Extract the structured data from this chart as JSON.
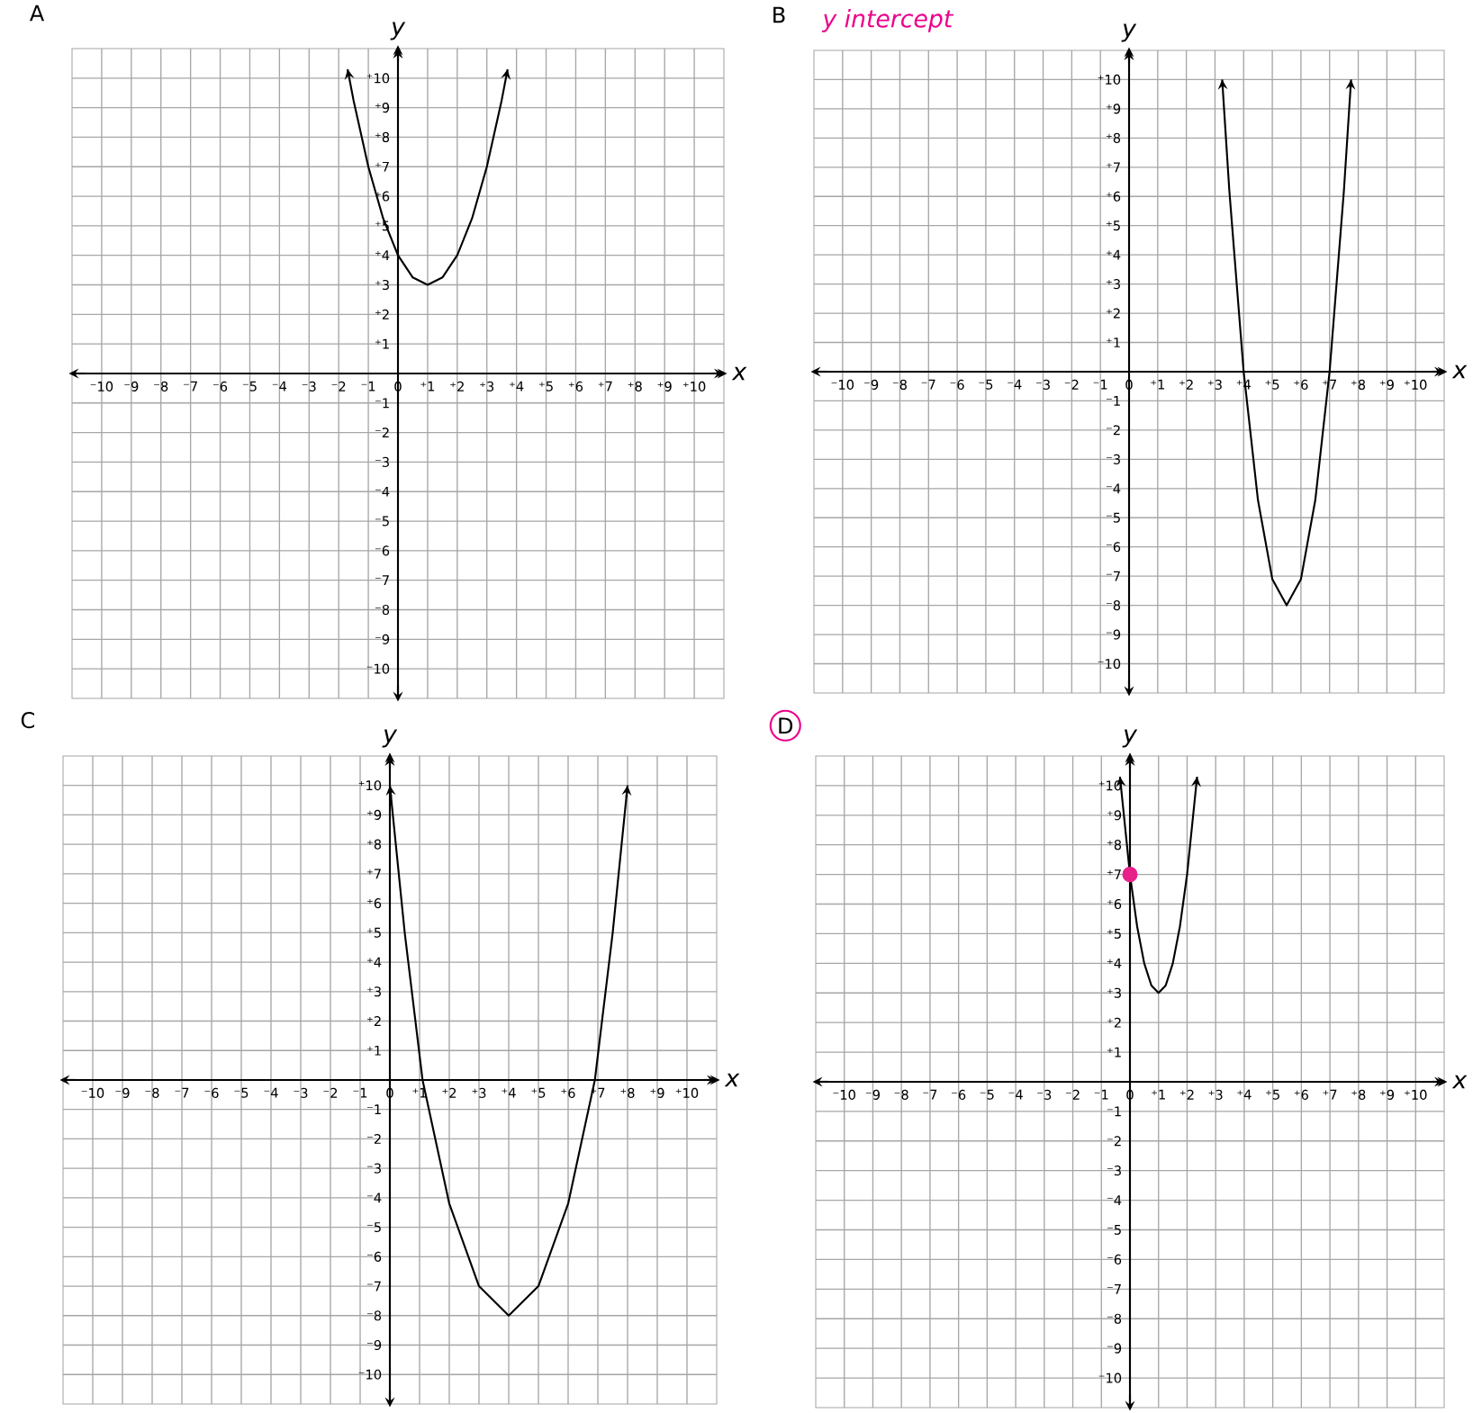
{
  "chart_data": [
    {
      "type": "line",
      "title": "A",
      "xlabel": "x",
      "ylabel": "y",
      "grid": true,
      "xlim": [
        -11,
        11
      ],
      "ylim": [
        -11,
        11
      ],
      "xticks": [
        {
          "value": -10,
          "label": "⁻10"
        },
        {
          "value": -9,
          "label": "⁻9"
        },
        {
          "value": -8,
          "label": "⁻8"
        },
        {
          "value": -7,
          "label": "⁻7"
        },
        {
          "value": -6,
          "label": "⁻6"
        },
        {
          "value": -5,
          "label": "⁻5"
        },
        {
          "value": -4,
          "label": "⁻4"
        },
        {
          "value": -3,
          "label": "⁻3"
        },
        {
          "value": -2,
          "label": "⁻2"
        },
        {
          "value": -1,
          "label": "⁻1"
        },
        0,
        {
          "value": 1,
          "label": "⁺1"
        },
        {
          "value": 2,
          "label": "⁺2"
        },
        {
          "value": 3,
          "label": "⁺3"
        },
        {
          "value": 4,
          "label": "⁺4"
        },
        {
          "value": 5,
          "label": "⁺5"
        },
        {
          "value": 6,
          "label": "⁺6"
        },
        {
          "value": 7,
          "label": "⁺7"
        },
        {
          "value": 8,
          "label": "⁺8"
        },
        {
          "value": 9,
          "label": "⁺9"
        },
        {
          "value": 10,
          "label": "⁺10"
        }
      ],
      "yticks": [
        {
          "value": -10,
          "label": "⁻10"
        },
        {
          "value": -9,
          "label": "⁻9"
        },
        {
          "value": -8,
          "label": "⁻8"
        },
        {
          "value": -7,
          "label": "⁻7"
        },
        {
          "value": -6,
          "label": "⁻6"
        },
        {
          "value": -5,
          "label": "⁻5"
        },
        {
          "value": -4,
          "label": "⁻4"
        },
        {
          "value": -3,
          "label": "⁻3"
        },
        {
          "value": -2,
          "label": "⁻2"
        },
        {
          "value": -1,
          "label": "⁻1"
        },
        {
          "value": 1,
          "label": "⁺1"
        },
        {
          "value": 2,
          "label": "⁺2"
        },
        {
          "value": 3,
          "label": "⁺3"
        },
        {
          "value": 4,
          "label": "⁺4"
        },
        {
          "value": 5,
          "label": "⁺5"
        },
        {
          "value": 6,
          "label": "⁺6"
        },
        {
          "value": 7,
          "label": "⁺7"
        },
        {
          "value": 8,
          "label": "⁺8"
        },
        {
          "value": 9,
          "label": "⁺9"
        },
        {
          "value": 10,
          "label": "⁺10"
        }
      ],
      "series": [
        {
          "color": "#000000",
          "x": [
            -1.7,
            -1.5,
            -1,
            -0.5,
            0,
            0.5,
            1,
            1.5,
            2,
            2.5,
            3,
            3.5,
            3.7
          ],
          "values": [
            10.3,
            9.25,
            7,
            5.25,
            4,
            3.25,
            3,
            3.25,
            4,
            5.25,
            7,
            9.25,
            10.3
          ]
        }
      ]
    },
    {
      "type": "line",
      "title": "B",
      "xlabel": "x",
      "ylabel": "y",
      "grid": true,
      "xlim": [
        -11,
        11
      ],
      "ylim": [
        -11,
        11
      ],
      "annotations": [
        "y intercept"
      ],
      "xticks": [
        {
          "value": -10,
          "label": "⁻10"
        },
        {
          "value": -9,
          "label": "⁻9"
        },
        {
          "value": -8,
          "label": "⁻8"
        },
        {
          "value": -7,
          "label": "⁻7"
        },
        {
          "value": -6,
          "label": "⁻6"
        },
        {
          "value": -5,
          "label": "⁻5"
        },
        {
          "value": -4,
          "label": "⁻4"
        },
        {
          "value": -3,
          "label": "⁻3"
        },
        {
          "value": -2,
          "label": "⁻2"
        },
        {
          "value": -1,
          "label": "⁻1"
        },
        0,
        {
          "value": 1,
          "label": "⁺1"
        },
        {
          "value": 2,
          "label": "⁺2"
        },
        {
          "value": 3,
          "label": "⁺3"
        },
        {
          "value": 4,
          "label": "⁺4"
        },
        {
          "value": 5,
          "label": "⁺5"
        },
        {
          "value": 6,
          "label": "⁺6"
        },
        {
          "value": 7,
          "label": "⁺7"
        },
        {
          "value": 8,
          "label": "⁺8"
        },
        {
          "value": 9,
          "label": "⁺9"
        },
        {
          "value": 10,
          "label": "⁺10"
        }
      ],
      "yticks": [
        {
          "value": -10,
          "label": "⁻10"
        },
        {
          "value": -9,
          "label": "⁻9"
        },
        {
          "value": -8,
          "label": "⁻8"
        },
        {
          "value": -7,
          "label": "⁻7"
        },
        {
          "value": -6,
          "label": "⁻6"
        },
        {
          "value": -5,
          "label": "⁻5"
        },
        {
          "value": -4,
          "label": "⁻4"
        },
        {
          "value": -3,
          "label": "⁻3"
        },
        {
          "value": -2,
          "label": "⁻2"
        },
        {
          "value": -1,
          "label": "⁻1"
        },
        {
          "value": 1,
          "label": "⁺1"
        },
        {
          "value": 2,
          "label": "⁺2"
        },
        {
          "value": 3,
          "label": "⁺3"
        },
        {
          "value": 4,
          "label": "⁺4"
        },
        {
          "value": 5,
          "label": "⁺5"
        },
        {
          "value": 6,
          "label": "⁺6"
        },
        {
          "value": 7,
          "label": "⁺7"
        },
        {
          "value": 8,
          "label": "⁺8"
        },
        {
          "value": 9,
          "label": "⁺9"
        },
        {
          "value": 10,
          "label": "⁺10"
        }
      ],
      "series": [
        {
          "color": "#000000",
          "x": [
            3.25,
            3.5,
            4,
            4.5,
            5,
            5.5,
            6,
            6.5,
            7,
            7.5,
            7.75
          ],
          "values": [
            10,
            6.2,
            0,
            -4.4,
            -7.1,
            -8,
            -7.1,
            -4.4,
            0,
            6.2,
            10
          ]
        }
      ]
    },
    {
      "type": "line",
      "title": "C",
      "xlabel": "x",
      "ylabel": "y",
      "grid": true,
      "xlim": [
        -11,
        11
      ],
      "ylim": [
        -11,
        11
      ],
      "xticks": [
        {
          "value": -10,
          "label": "⁻10"
        },
        {
          "value": -9,
          "label": "⁻9"
        },
        {
          "value": -8,
          "label": "⁻8"
        },
        {
          "value": -7,
          "label": "⁻7"
        },
        {
          "value": -6,
          "label": "⁻6"
        },
        {
          "value": -5,
          "label": "⁻5"
        },
        {
          "value": -4,
          "label": "⁻4"
        },
        {
          "value": -3,
          "label": "⁻3"
        },
        {
          "value": -2,
          "label": "⁻2"
        },
        {
          "value": -1,
          "label": "⁻1"
        },
        0,
        {
          "value": 1,
          "label": "⁺1"
        },
        {
          "value": 2,
          "label": "⁺2"
        },
        {
          "value": 3,
          "label": "⁺3"
        },
        {
          "value": 4,
          "label": "⁺4"
        },
        {
          "value": 5,
          "label": "⁺5"
        },
        {
          "value": 6,
          "label": "⁺6"
        },
        {
          "value": 7,
          "label": "⁺7"
        },
        {
          "value": 8,
          "label": "⁺8"
        },
        {
          "value": 9,
          "label": "⁺9"
        },
        {
          "value": 10,
          "label": "⁺10"
        }
      ],
      "yticks": [
        {
          "value": -10,
          "label": "⁻10"
        },
        {
          "value": -9,
          "label": "⁻9"
        },
        {
          "value": -8,
          "label": "⁻8"
        },
        {
          "value": -7,
          "label": "⁻7"
        },
        {
          "value": -6,
          "label": "⁻6"
        },
        {
          "value": -5,
          "label": "⁻5"
        },
        {
          "value": -4,
          "label": "⁻4"
        },
        {
          "value": -3,
          "label": "⁻3"
        },
        {
          "value": -2,
          "label": "⁻2"
        },
        {
          "value": -1,
          "label": "⁻1"
        },
        {
          "value": 1,
          "label": "⁺1"
        },
        {
          "value": 2,
          "label": "⁺2"
        },
        {
          "value": 3,
          "label": "⁺3"
        },
        {
          "value": 4,
          "label": "⁺4"
        },
        {
          "value": 5,
          "label": "⁺5"
        },
        {
          "value": 6,
          "label": "⁺6"
        },
        {
          "value": 7,
          "label": "⁺7"
        },
        {
          "value": 8,
          "label": "⁺8"
        },
        {
          "value": 9,
          "label": "⁺9"
        },
        {
          "value": 10,
          "label": "⁺10"
        }
      ],
      "series": [
        {
          "color": "#000000",
          "x": [
            0,
            0.5,
            1.1,
            2,
            3,
            4,
            5,
            6,
            6.9,
            7.5,
            8
          ],
          "values": [
            10,
            5,
            0,
            -4.2,
            -7,
            -8,
            -7,
            -4.2,
            0,
            5,
            10
          ]
        }
      ]
    },
    {
      "type": "line",
      "title": "D",
      "xlabel": "x",
      "ylabel": "y",
      "grid": true,
      "xlim": [
        -11,
        11
      ],
      "ylim": [
        -11,
        11
      ],
      "xticks": [
        {
          "value": -10,
          "label": "⁻10"
        },
        {
          "value": -9,
          "label": "⁻9"
        },
        {
          "value": -8,
          "label": "⁻8"
        },
        {
          "value": -7,
          "label": "⁻7"
        },
        {
          "value": -6,
          "label": "⁻6"
        },
        {
          "value": -5,
          "label": "⁻5"
        },
        {
          "value": -4,
          "label": "⁻4"
        },
        {
          "value": -3,
          "label": "⁻3"
        },
        {
          "value": -2,
          "label": "⁻2"
        },
        {
          "value": -1,
          "label": "⁻1"
        },
        0,
        {
          "value": 1,
          "label": "⁺1"
        },
        {
          "value": 2,
          "label": "⁺2"
        },
        {
          "value": 3,
          "label": "⁺3"
        },
        {
          "value": 4,
          "label": "⁺4"
        },
        {
          "value": 5,
          "label": "⁺5"
        },
        {
          "value": 6,
          "label": "⁺6"
        },
        {
          "value": 7,
          "label": "⁺7"
        },
        {
          "value": 8,
          "label": "⁺8"
        },
        {
          "value": 9,
          "label": "⁺9"
        },
        {
          "value": 10,
          "label": "⁺10"
        }
      ],
      "yticks": [
        {
          "value": -10,
          "label": "⁻10"
        },
        {
          "value": -9,
          "label": "⁻9"
        },
        {
          "value": -8,
          "label": "⁻8"
        },
        {
          "value": -7,
          "label": "⁻7"
        },
        {
          "value": -6,
          "label": "⁻6"
        },
        {
          "value": -5,
          "label": "⁻5"
        },
        {
          "value": -4,
          "label": "⁻4"
        },
        {
          "value": -3,
          "label": "⁻3"
        },
        {
          "value": -2,
          "label": "⁻2"
        },
        {
          "value": -1,
          "label": "⁻1"
        },
        {
          "value": 1,
          "label": "⁺1"
        },
        {
          "value": 2,
          "label": "⁺2"
        },
        {
          "value": 3,
          "label": "⁺3"
        },
        {
          "value": 4,
          "label": "⁺4"
        },
        {
          "value": 5,
          "label": "⁺5"
        },
        {
          "value": 6,
          "label": "⁺6"
        },
        {
          "value": 7,
          "label": "⁺7"
        },
        {
          "value": 8,
          "label": "⁺8"
        },
        {
          "value": 9,
          "label": "⁺9"
        },
        {
          "value": 10,
          "label": "⁺10"
        }
      ],
      "series": [
        {
          "color": "#000000",
          "x": [
            -0.35,
            0,
            0.25,
            0.5,
            0.75,
            1,
            1.25,
            1.5,
            1.75,
            2,
            2.35
          ],
          "values": [
            10.3,
            7,
            5.25,
            4,
            3.25,
            3,
            3.25,
            4,
            5.25,
            7,
            10.3
          ]
        },
        {
          "type": "scatter",
          "color": "#e8208a",
          "x": [
            0
          ],
          "values": [
            7
          ]
        }
      ]
    }
  ]
}
